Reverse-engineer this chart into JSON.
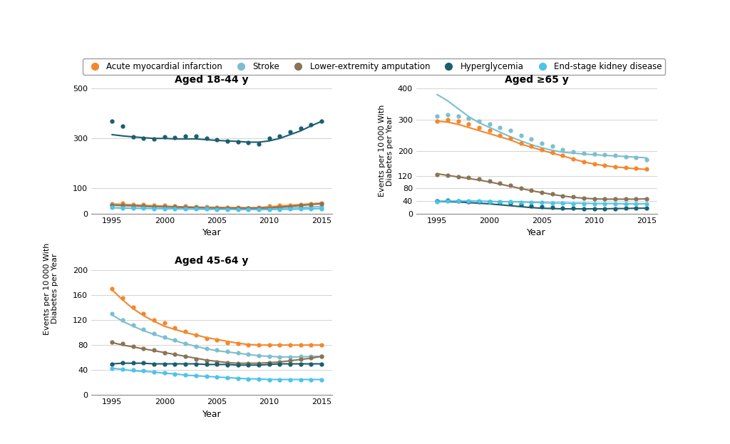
{
  "colors": {
    "ami": "#F4872B",
    "stroke": "#7BBFCF",
    "lea": "#8B7355",
    "hyper": "#1B5E6E",
    "eskd": "#4FC3E8"
  },
  "legend_labels": [
    "Acute myocardial infarction",
    "Stroke",
    "Lower-extremity amputation",
    "Hyperglycemia",
    "End-stage kidney disease"
  ],
  "panel1": {
    "title": "Aged 18-44 y",
    "ylim": [
      0,
      500
    ],
    "yticks": [
      0,
      100,
      300,
      500
    ],
    "ytick_labels": [
      "0",
      "100",
      "300",
      "500"
    ],
    "years": [
      1995,
      1996,
      1997,
      1998,
      1999,
      2000,
      2001,
      2002,
      2003,
      2004,
      2005,
      2006,
      2007,
      2008,
      2009,
      2010,
      2011,
      2012,
      2013,
      2014,
      2015
    ],
    "ami_dots": [
      38,
      42,
      36,
      35,
      33,
      34,
      30,
      30,
      28,
      27,
      26,
      24,
      24,
      22,
      25,
      30,
      32,
      33,
      36,
      40,
      42
    ],
    "stroke_dots": [
      35,
      32,
      30,
      28,
      27,
      27,
      26,
      25,
      24,
      24,
      23,
      21,
      20,
      19,
      20,
      22,
      22,
      23,
      25,
      27,
      28
    ],
    "lea_dots": [
      33,
      32,
      30,
      29,
      27,
      28,
      27,
      26,
      24,
      23,
      23,
      22,
      22,
      22,
      22,
      23,
      25,
      28,
      32,
      37,
      40
    ],
    "hyper_dots": [
      370,
      350,
      305,
      300,
      298,
      306,
      304,
      308,
      310,
      300,
      295,
      288,
      285,
      283,
      278,
      300,
      310,
      325,
      340,
      355,
      370
    ],
    "eskd_dots": [
      24,
      23,
      22,
      21,
      20,
      20,
      19,
      19,
      18,
      18,
      17,
      17,
      16,
      16,
      16,
      17,
      17,
      18,
      18,
      19,
      20
    ],
    "ami_line": [
      38,
      37,
      35,
      33,
      31,
      30,
      28,
      27,
      26,
      25,
      25,
      24,
      24,
      23,
      24,
      27,
      30,
      33,
      36,
      39,
      42
    ],
    "stroke_line": [
      34,
      32,
      30,
      28,
      27,
      26,
      25,
      24,
      23,
      22,
      21,
      21,
      20,
      20,
      20,
      21,
      22,
      23,
      24,
      26,
      28
    ],
    "lea_line": [
      33,
      32,
      31,
      29,
      28,
      27,
      26,
      25,
      24,
      23,
      22,
      22,
      22,
      22,
      22,
      23,
      26,
      29,
      32,
      36,
      39
    ],
    "hyper_line": [
      315,
      310,
      306,
      303,
      300,
      300,
      298,
      298,
      298,
      295,
      292,
      290,
      288,
      285,
      285,
      290,
      300,
      315,
      330,
      350,
      368
    ],
    "eskd_line": [
      23,
      22,
      21,
      20,
      20,
      19,
      19,
      18,
      18,
      17,
      17,
      17,
      16,
      16,
      16,
      16,
      17,
      17,
      18,
      19,
      20
    ]
  },
  "panel2": {
    "title": "Aged ≥65 y",
    "ylim": [
      0,
      400
    ],
    "yticks": [
      0,
      40,
      80,
      120,
      200,
      300,
      400
    ],
    "ytick_labels": [
      "0",
      "40",
      "80",
      "120",
      "200",
      "300",
      "400"
    ],
    "years": [
      1995,
      1996,
      1997,
      1998,
      1999,
      2000,
      2001,
      2002,
      2003,
      2004,
      2005,
      2006,
      2007,
      2008,
      2009,
      2010,
      2011,
      2012,
      2013,
      2014,
      2015
    ],
    "ami_dots": [
      295,
      300,
      295,
      285,
      275,
      265,
      250,
      240,
      225,
      215,
      205,
      195,
      185,
      175,
      165,
      158,
      155,
      150,
      148,
      145,
      142
    ],
    "stroke_dots": [
      310,
      315,
      310,
      305,
      295,
      285,
      275,
      265,
      250,
      238,
      225,
      215,
      205,
      198,
      193,
      190,
      188,
      185,
      182,
      178,
      172
    ],
    "lea_dots": [
      125,
      122,
      118,
      115,
      110,
      105,
      98,
      90,
      82,
      75,
      68,
      62,
      57,
      53,
      50,
      48,
      47,
      46,
      46,
      46,
      47
    ],
    "hyper_dots": [
      40,
      42,
      40,
      39,
      38,
      37,
      36,
      33,
      28,
      25,
      22,
      20,
      18,
      17,
      16,
      16,
      16,
      16,
      17,
      17,
      18
    ],
    "eskd_dots": [
      38,
      40,
      41,
      40,
      40,
      39,
      38,
      37,
      36,
      35,
      35,
      34,
      33,
      32,
      32,
      32,
      31,
      31,
      31,
      31,
      31
    ],
    "ami_line": [
      295,
      292,
      285,
      275,
      265,
      255,
      245,
      235,
      222,
      212,
      202,
      193,
      184,
      174,
      165,
      158,
      153,
      149,
      146,
      143,
      141
    ],
    "stroke_line": [
      380,
      360,
      335,
      310,
      290,
      275,
      260,
      245,
      232,
      220,
      210,
      202,
      196,
      193,
      190,
      188,
      186,
      184,
      182,
      180,
      178
    ],
    "lea_line": [
      127,
      122,
      117,
      112,
      107,
      101,
      94,
      87,
      80,
      73,
      67,
      61,
      56,
      52,
      49,
      47,
      46,
      46,
      46,
      46,
      47
    ],
    "hyper_line": [
      39,
      38,
      37,
      35,
      33,
      31,
      28,
      25,
      22,
      19,
      17,
      16,
      15,
      15,
      15,
      15,
      15,
      16,
      16,
      17,
      17
    ],
    "eskd_line": [
      39,
      40,
      40,
      40,
      40,
      39,
      38,
      38,
      37,
      36,
      35,
      34,
      34,
      33,
      33,
      32,
      32,
      32,
      31,
      31,
      31
    ]
  },
  "panel3": {
    "title": "Aged 45-64 y",
    "ylim": [
      0,
      200
    ],
    "yticks": [
      0,
      40,
      80,
      120,
      160,
      200
    ],
    "ytick_labels": [
      "0",
      "40",
      "80",
      "120",
      "160",
      "200"
    ],
    "years": [
      1995,
      1996,
      1997,
      1998,
      1999,
      2000,
      2001,
      2002,
      2003,
      2004,
      2005,
      2006,
      2007,
      2008,
      2009,
      2010,
      2011,
      2012,
      2013,
      2014,
      2015
    ],
    "ami_dots": [
      170,
      155,
      140,
      130,
      120,
      115,
      108,
      102,
      96,
      90,
      88,
      84,
      82,
      80,
      80,
      80,
      80,
      80,
      80,
      80,
      80
    ],
    "stroke_dots": [
      130,
      120,
      112,
      105,
      98,
      93,
      88,
      83,
      78,
      75,
      72,
      70,
      68,
      65,
      63,
      62,
      61,
      61,
      62,
      62,
      62
    ],
    "lea_dots": [
      85,
      82,
      78,
      75,
      72,
      68,
      65,
      62,
      58,
      55,
      53,
      52,
      51,
      51,
      51,
      52,
      53,
      55,
      57,
      60,
      62
    ],
    "hyper_dots": [
      50,
      52,
      52,
      52,
      50,
      50,
      50,
      50,
      50,
      50,
      50,
      48,
      48,
      48,
      48,
      50,
      50,
      50,
      50,
      50,
      50
    ],
    "eskd_dots": [
      43,
      42,
      40,
      39,
      37,
      36,
      34,
      32,
      31,
      30,
      29,
      28,
      27,
      26,
      26,
      25,
      25,
      25,
      24,
      25,
      25
    ],
    "ami_line": [
      168,
      152,
      138,
      127,
      118,
      110,
      105,
      100,
      96,
      92,
      89,
      86,
      83,
      81,
      80,
      80,
      80,
      80,
      80,
      80,
      80
    ],
    "stroke_line": [
      128,
      118,
      110,
      103,
      97,
      92,
      87,
      82,
      78,
      74,
      71,
      69,
      67,
      65,
      63,
      62,
      61,
      61,
      61,
      62,
      62
    ],
    "lea_line": [
      84,
      80,
      77,
      74,
      71,
      68,
      65,
      62,
      59,
      56,
      54,
      52,
      51,
      51,
      51,
      52,
      53,
      55,
      57,
      59,
      62
    ],
    "hyper_line": [
      50,
      51,
      51,
      51,
      50,
      50,
      50,
      50,
      50,
      49,
      49,
      49,
      48,
      48,
      48,
      49,
      50,
      50,
      50,
      50,
      50
    ],
    "eskd_line": [
      43,
      41,
      39,
      38,
      37,
      35,
      34,
      32,
      31,
      30,
      29,
      28,
      27,
      26,
      26,
      25,
      25,
      25,
      25,
      25,
      25
    ]
  },
  "ylabel": "Events per 10 000 With\nDiabetes per Year",
  "xlabel": "Year"
}
